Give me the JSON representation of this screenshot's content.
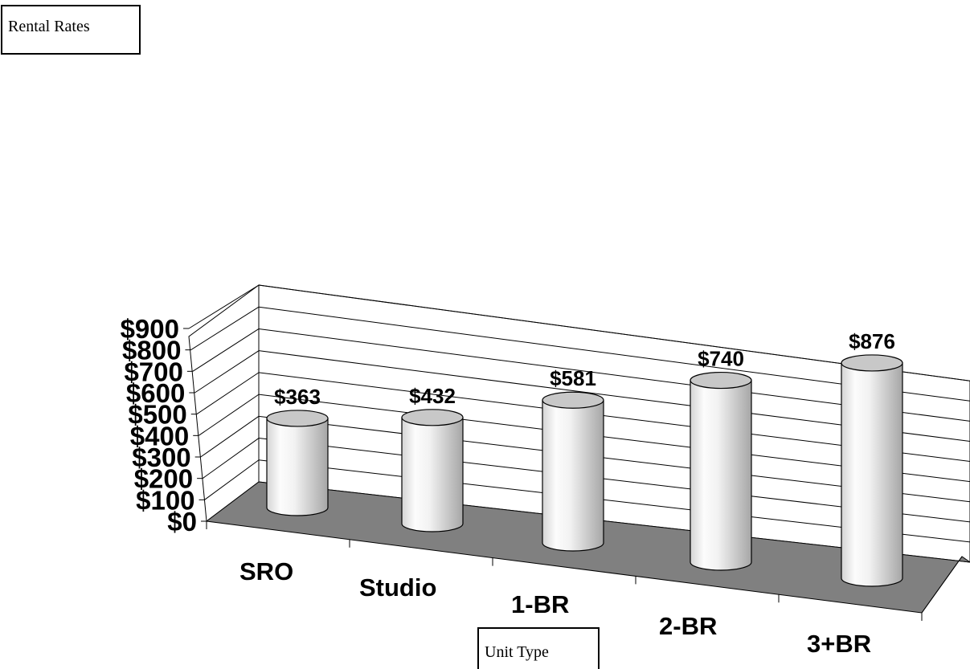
{
  "chart_data": {
    "type": "bar",
    "style": "3d-cylinder",
    "ylabel": "Rental Rates",
    "xlabel": "Unit Type",
    "categories": [
      "SRO",
      "Studio",
      "1-BR",
      "2-BR",
      "3+BR"
    ],
    "values": [
      363,
      432,
      581,
      740,
      876
    ],
    "data_labels": [
      "$363",
      "$432",
      "$581",
      "$740",
      "$876"
    ],
    "yticks": [
      "$0",
      "$100",
      "$200",
      "$300",
      "$400",
      "$500",
      "$600",
      "$700",
      "$800",
      "$900"
    ],
    "ylim": [
      0,
      900
    ],
    "grid": true,
    "colors": {
      "floor": "#808080",
      "bar_light": "#ffffff",
      "bar_dark": "#9a9a9a",
      "bar_top": "#c8c8c8"
    }
  }
}
